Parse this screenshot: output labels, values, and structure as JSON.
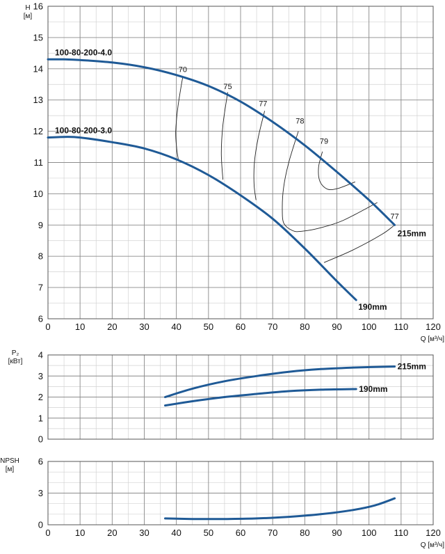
{
  "colors": {
    "curve": "#1f5a96",
    "grid_major": "#8c8c8c",
    "grid_minor": "#d2d2d2",
    "iso": "#222222"
  },
  "chart_data": [
    {
      "id": "head",
      "type": "line",
      "ylabel": [
        "H",
        "[м]"
      ],
      "xlabel": "Q [м³/ч]",
      "xlim": [
        0,
        120
      ],
      "ylim": [
        6,
        16
      ],
      "xticks": [
        0,
        10,
        20,
        30,
        40,
        50,
        60,
        70,
        80,
        90,
        100,
        110,
        120
      ],
      "yticks": [
        6,
        7,
        8,
        9,
        10,
        11,
        12,
        13,
        14,
        15,
        16
      ],
      "grid": true,
      "series": [
        {
          "name": "100-80-200-4.0",
          "end_label": "215mm",
          "x": [
            0,
            5,
            10,
            20,
            30,
            40,
            50,
            60,
            70,
            80,
            90,
            100,
            108
          ],
          "y": [
            14.3,
            14.3,
            14.28,
            14.2,
            14.05,
            13.8,
            13.45,
            12.95,
            12.3,
            11.55,
            10.7,
            9.8,
            9.0
          ]
        },
        {
          "name": "100-80-200-3.0",
          "end_label": "190mm",
          "x": [
            0,
            5,
            10,
            20,
            30,
            40,
            50,
            60,
            70,
            80,
            90,
            96
          ],
          "y": [
            11.8,
            11.82,
            11.8,
            11.65,
            11.45,
            11.1,
            10.6,
            9.95,
            9.2,
            8.25,
            7.2,
            6.6
          ]
        }
      ],
      "efficiency_labels": [
        {
          "text": "70",
          "x": 42,
          "y": 13.9
        },
        {
          "text": "75",
          "x": 56,
          "y": 13.35
        },
        {
          "text": "77",
          "x": 67,
          "y": 12.8
        },
        {
          "text": "78",
          "x": 78.5,
          "y": 12.25
        },
        {
          "text": "79",
          "x": 86,
          "y": 11.6
        },
        {
          "text": "77",
          "x": 108,
          "y": 9.2
        }
      ],
      "efficiency_lines": [
        {
          "x": [
            42,
            40.5,
            39.8,
            40.1,
            40.6
          ],
          "y": [
            13.75,
            12.8,
            12.0,
            11.45,
            11.1
          ]
        },
        {
          "x": [
            56,
            54.5,
            54.0,
            54.5
          ],
          "y": [
            13.25,
            12.2,
            11.3,
            10.45
          ]
        },
        {
          "x": [
            67.5,
            65.5,
            64.3,
            64.2,
            64.8
          ],
          "y": [
            12.65,
            11.8,
            11.0,
            10.3,
            9.8
          ]
        },
        {
          "x": [
            78,
            75,
            73.4,
            73.0,
            73.5,
            76.2,
            79,
            84.5,
            92,
            102.6
          ],
          "y": [
            12.0,
            11.0,
            10.2,
            9.5,
            9.05,
            8.82,
            8.8,
            8.9,
            9.15,
            9.72
          ]
        },
        {
          "x": [
            85.5,
            84.3,
            84.7,
            87,
            90.3,
            95.7
          ],
          "y": [
            11.35,
            10.85,
            10.4,
            10.15,
            10.17,
            10.38
          ]
        },
        {
          "x": [
            108,
            104,
            95,
            86
          ],
          "y": [
            9.0,
            8.7,
            8.2,
            7.8
          ]
        }
      ]
    },
    {
      "id": "power",
      "type": "line",
      "ylabel": [
        "P₂",
        "[кВт]"
      ],
      "xlim": [
        0,
        120
      ],
      "ylim": [
        0,
        4
      ],
      "yticks": [
        0,
        1,
        2,
        3,
        4
      ],
      "grid": true,
      "series": [
        {
          "name": "",
          "end_label": "215mm",
          "x": [
            36.5,
            45,
            55,
            65,
            75,
            85,
            95,
            108
          ],
          "y": [
            2.0,
            2.4,
            2.75,
            3.0,
            3.2,
            3.33,
            3.4,
            3.45
          ]
        },
        {
          "name": "",
          "end_label": "190mm",
          "x": [
            36.5,
            45,
            55,
            65,
            75,
            85,
            96
          ],
          "y": [
            1.6,
            1.8,
            2.0,
            2.15,
            2.28,
            2.35,
            2.38
          ]
        }
      ]
    },
    {
      "id": "npsh",
      "type": "line",
      "ylabel": [
        "NPSH",
        "[м]"
      ],
      "xlabel": "Q [м³/ч]",
      "xlim": [
        0,
        120
      ],
      "ylim": [
        0,
        6
      ],
      "xticks": [
        0,
        10,
        20,
        30,
        40,
        50,
        60,
        70,
        80,
        90,
        100,
        110,
        120
      ],
      "yticks": [
        0,
        3,
        6
      ],
      "grid": true,
      "series": [
        {
          "name": "",
          "end_label": "",
          "x": [
            36.5,
            45,
            55,
            65,
            75,
            85,
            95,
            102,
            108
          ],
          "y": [
            0.6,
            0.55,
            0.55,
            0.6,
            0.75,
            1.0,
            1.4,
            1.85,
            2.5
          ]
        }
      ]
    }
  ]
}
